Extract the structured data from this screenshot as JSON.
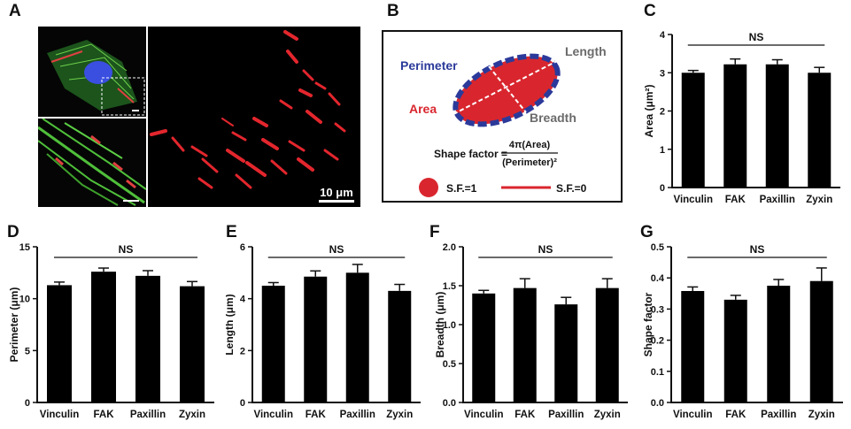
{
  "panels": {
    "a": "A",
    "b": "B",
    "c": "C",
    "d": "D",
    "e": "E",
    "f": "F",
    "g": "G"
  },
  "micrograph": {
    "scale_bar_label": "10 μm"
  },
  "schematic": {
    "perimeter": "Perimeter",
    "area": "Area",
    "length": "Length",
    "breadth": "Breadth",
    "shape_factor_lhs": "Shape factor =",
    "shape_factor_num": "4π(Area)",
    "shape_factor_den": "(Perimeter)²",
    "sf_circle": "S.F.=1",
    "sf_line": "S.F.=0",
    "colors": {
      "fill": "#d9262e",
      "border": "#2b3a9a",
      "text_blue": "#2b3a9a",
      "text_red": "#d9262e",
      "text_gray": "#6b6b6b"
    }
  },
  "chart_data": [
    {
      "id": "C",
      "type": "bar",
      "categories": [
        "Vinculin",
        "FAK",
        "Paxillin",
        "Zyxin"
      ],
      "values": [
        3.0,
        3.22,
        3.22,
        3.0
      ],
      "errors": [
        0.06,
        0.14,
        0.12,
        0.14
      ],
      "ylabel": "Area (μm²)",
      "ylim": [
        0,
        4
      ],
      "yticks": [
        "0",
        "1",
        "2",
        "3",
        "4"
      ],
      "annotation": "NS",
      "bar_color": "#000000"
    },
    {
      "id": "D",
      "type": "bar",
      "categories": [
        "Vinculin",
        "FAK",
        "Paxillin",
        "Zyxin"
      ],
      "values": [
        11.3,
        12.6,
        12.2,
        11.2
      ],
      "errors": [
        0.3,
        0.35,
        0.5,
        0.45
      ],
      "ylabel": "Perimeter (μm)",
      "ylim": [
        0,
        15
      ],
      "yticks": [
        "0",
        "5",
        "10",
        "15"
      ],
      "annotation": "NS",
      "bar_color": "#000000"
    },
    {
      "id": "E",
      "type": "bar",
      "categories": [
        "Vinculin",
        "FAK",
        "Paxillin",
        "Zyxin"
      ],
      "values": [
        4.5,
        4.85,
        5.0,
        4.3
      ],
      "errors": [
        0.12,
        0.22,
        0.32,
        0.25
      ],
      "ylabel": "Length (μm)",
      "ylim": [
        0,
        6
      ],
      "yticks": [
        "0",
        "2",
        "4",
        "6"
      ],
      "annotation": "NS",
      "bar_color": "#000000"
    },
    {
      "id": "F",
      "type": "bar",
      "categories": [
        "Vinculin",
        "FAK",
        "Paxillin",
        "Zyxin"
      ],
      "values": [
        1.4,
        1.47,
        1.26,
        1.47
      ],
      "errors": [
        0.04,
        0.12,
        0.09,
        0.12
      ],
      "ylabel": "Breadth (μm)",
      "ylim": [
        0,
        2.0
      ],
      "yticks": [
        "0.0",
        "0.5",
        "1.0",
        "1.5",
        "2.0"
      ],
      "annotation": "NS",
      "bar_color": "#000000"
    },
    {
      "id": "G",
      "type": "bar",
      "categories": [
        "Vinculin",
        "FAK",
        "Paxillin",
        "Zyxin"
      ],
      "values": [
        0.358,
        0.33,
        0.375,
        0.39
      ],
      "errors": [
        0.013,
        0.014,
        0.02,
        0.042
      ],
      "ylabel": "Shape factor",
      "ylim": [
        0,
        0.5
      ],
      "yticks": [
        "0.0",
        "0.1",
        "0.2",
        "0.3",
        "0.4",
        "0.5"
      ],
      "annotation": "NS",
      "bar_color": "#000000"
    }
  ]
}
